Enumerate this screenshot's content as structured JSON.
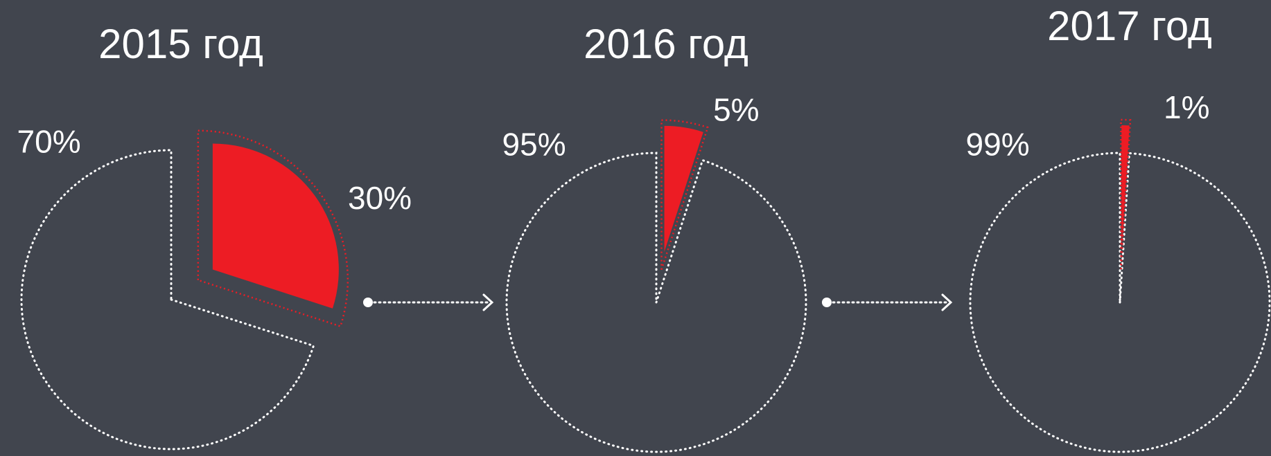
{
  "chart_data": [
    {
      "type": "pie",
      "title": "2015 год",
      "values": [
        70,
        30
      ],
      "value_labels": [
        "70%",
        "30%"
      ],
      "colors": [
        "#ffffff",
        "#ed1c24"
      ]
    },
    {
      "type": "pie",
      "title": "2016 год",
      "values": [
        95,
        5
      ],
      "value_labels": [
        "95%",
        "5%"
      ],
      "colors": [
        "#ffffff",
        "#ed1c24"
      ]
    },
    {
      "type": "pie",
      "title": "2017 год",
      "values": [
        99,
        1
      ],
      "value_labels": [
        "99%",
        "1%"
      ],
      "colors": [
        "#ffffff",
        "#ed1c24"
      ]
    }
  ]
}
